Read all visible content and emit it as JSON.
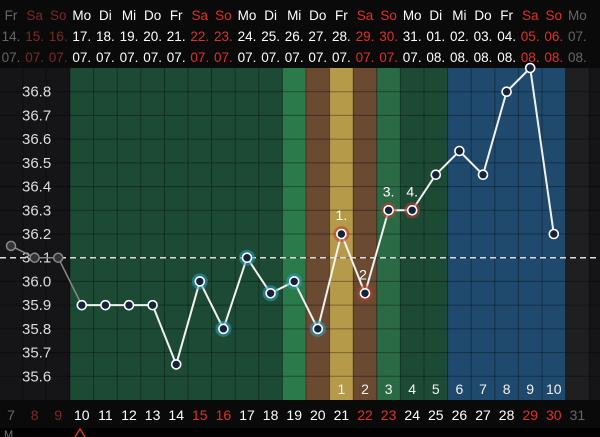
{
  "chart_data": {
    "type": "line",
    "ylim": [
      35.5,
      36.9
    ],
    "y_ticks": [
      "36.8",
      "36.7",
      "36.6",
      "36.5",
      "36.4",
      "36.3",
      "36.2",
      "36.1",
      "36.0",
      "35.9",
      "35.8",
      "35.7",
      "35.6"
    ],
    "coverline": 36.1,
    "grid": true,
    "dates": [
      {
        "dow": "Fr",
        "day": "14.",
        "month": "07.",
        "weekend": false,
        "dim": true
      },
      {
        "dow": "Sa",
        "day": "15.",
        "month": "07.",
        "weekend": true,
        "dim": true
      },
      {
        "dow": "So",
        "day": "16.",
        "month": "07.",
        "weekend": true,
        "dim": true
      },
      {
        "dow": "Mo",
        "day": "17.",
        "month": "07.",
        "weekend": false
      },
      {
        "dow": "Di",
        "day": "18.",
        "month": "07.",
        "weekend": false
      },
      {
        "dow": "Mi",
        "day": "19.",
        "month": "07.",
        "weekend": false
      },
      {
        "dow": "Do",
        "day": "20.",
        "month": "07.",
        "weekend": false
      },
      {
        "dow": "Fr",
        "day": "21.",
        "month": "07.",
        "weekend": false
      },
      {
        "dow": "Sa",
        "day": "22.",
        "month": "07.",
        "weekend": true
      },
      {
        "dow": "So",
        "day": "23.",
        "month": "07.",
        "weekend": true
      },
      {
        "dow": "Mo",
        "day": "24.",
        "month": "07.",
        "weekend": false
      },
      {
        "dow": "Di",
        "day": "25.",
        "month": "07.",
        "weekend": false
      },
      {
        "dow": "Mi",
        "day": "26.",
        "month": "07.",
        "weekend": false
      },
      {
        "dow": "Do",
        "day": "27.",
        "month": "07.",
        "weekend": false
      },
      {
        "dow": "Fr",
        "day": "28.",
        "month": "07.",
        "weekend": false
      },
      {
        "dow": "Sa",
        "day": "29.",
        "month": "07.",
        "weekend": true
      },
      {
        "dow": "So",
        "day": "30.",
        "month": "07.",
        "weekend": true
      },
      {
        "dow": "Mo",
        "day": "31.",
        "month": "07.",
        "weekend": false
      },
      {
        "dow": "Di",
        "day": "01.",
        "month": "08.",
        "weekend": false
      },
      {
        "dow": "Mi",
        "day": "02.",
        "month": "08.",
        "weekend": false
      },
      {
        "dow": "Do",
        "day": "03.",
        "month": "08.",
        "weekend": false
      },
      {
        "dow": "Fr",
        "day": "04.",
        "month": "08.",
        "weekend": false
      },
      {
        "dow": "Sa",
        "day": "05.",
        "month": "08.",
        "weekend": true
      },
      {
        "dow": "So",
        "day": "06.",
        "month": "08.",
        "weekend": true
      },
      {
        "dow": "Mo",
        "day": "07.",
        "month": "08.",
        "weekend": false,
        "dim": true
      }
    ],
    "cycle_days": [
      {
        "label": "7",
        "weekend": false,
        "dim": true
      },
      {
        "label": "8",
        "weekend": true,
        "dim": true
      },
      {
        "label": "9",
        "weekend": true,
        "dim": true
      },
      {
        "label": "10",
        "weekend": false
      },
      {
        "label": "11",
        "weekend": false
      },
      {
        "label": "12",
        "weekend": false
      },
      {
        "label": "13",
        "weekend": false
      },
      {
        "label": "14",
        "weekend": false
      },
      {
        "label": "15",
        "weekend": true
      },
      {
        "label": "16",
        "weekend": true
      },
      {
        "label": "17",
        "weekend": false
      },
      {
        "label": "18",
        "weekend": false
      },
      {
        "label": "19",
        "weekend": false
      },
      {
        "label": "20",
        "weekend": false
      },
      {
        "label": "21",
        "weekend": false
      },
      {
        "label": "22",
        "weekend": true
      },
      {
        "label": "23",
        "weekend": true
      },
      {
        "label": "24",
        "weekend": false
      },
      {
        "label": "25",
        "weekend": false
      },
      {
        "label": "26",
        "weekend": false
      },
      {
        "label": "27",
        "weekend": false
      },
      {
        "label": "28",
        "weekend": false
      },
      {
        "label": "29",
        "weekend": true
      },
      {
        "label": "30",
        "weekend": true
      },
      {
        "label": "31",
        "weekend": false,
        "dim": true
      }
    ],
    "bands": [
      {
        "from": 3,
        "to": 11,
        "color": "#1d4a35"
      },
      {
        "from": 12,
        "to": 12,
        "color": "#2a7a4a"
      },
      {
        "from": 13,
        "to": 13,
        "color": "#6b4a32"
      },
      {
        "from": 14,
        "to": 14,
        "color": "#b59a4a"
      },
      {
        "from": 15,
        "to": 15,
        "color": "#6b4a32"
      },
      {
        "from": 16,
        "to": 16,
        "color": "#2a6a45"
      },
      {
        "from": 17,
        "to": 18,
        "color": "#1d4a35"
      },
      {
        "from": 19,
        "to": 23,
        "color": "#1f4a6e"
      },
      {
        "from": 24,
        "to": 24,
        "color": "#1f1f22"
      }
    ],
    "post_ovulation_labels": [
      {
        "day": 14,
        "label": "1"
      },
      {
        "day": 15,
        "label": "2"
      },
      {
        "day": 16,
        "label": "3"
      },
      {
        "day": 17,
        "label": "4"
      },
      {
        "day": 18,
        "label": "5"
      },
      {
        "day": 19,
        "label": "6"
      },
      {
        "day": 20,
        "label": "7"
      },
      {
        "day": 21,
        "label": "8"
      },
      {
        "day": 22,
        "label": "9"
      },
      {
        "day": 23,
        "label": "10"
      }
    ],
    "series": [
      {
        "prior_points": [
          [
            0,
            36.15
          ],
          [
            1,
            36.1
          ],
          [
            2,
            36.1
          ]
        ],
        "points": [
          {
            "day": 3,
            "value": 35.9,
            "ring": null
          },
          {
            "day": 4,
            "value": 35.9,
            "ring": null
          },
          {
            "day": 5,
            "value": 35.9,
            "ring": null
          },
          {
            "day": 6,
            "value": 35.9,
            "ring": null
          },
          {
            "day": 7,
            "value": 35.65,
            "ring": null
          },
          {
            "day": 8,
            "value": 36.0,
            "ring": "#2aa0c0"
          },
          {
            "day": 9,
            "value": 35.8,
            "ring": "#2aa0c0"
          },
          {
            "day": 10,
            "value": 36.1,
            "ring": "#2aa0c0"
          },
          {
            "day": 11,
            "value": 35.95,
            "ring": "#2aa0c0"
          },
          {
            "day": 12,
            "value": 36.0,
            "ring": "#2aa0c0"
          },
          {
            "day": 13,
            "value": 35.8,
            "ring": "#2aa0c0"
          },
          {
            "day": 14,
            "value": 36.2,
            "ring": "#c0392b",
            "label": "1."
          },
          {
            "day": 15,
            "value": 35.95,
            "ring": "#c0392b",
            "label": "2."
          },
          {
            "day": 16,
            "value": 36.3,
            "ring": "#c0392b",
            "label": "3."
          },
          {
            "day": 17,
            "value": 36.3,
            "ring": "#c0392b",
            "label": "4."
          },
          {
            "day": 18,
            "value": 36.45,
            "ring": null
          },
          {
            "day": 19,
            "value": 36.55,
            "ring": null
          },
          {
            "day": 20,
            "value": 36.45,
            "ring": null
          },
          {
            "day": 21,
            "value": 36.8,
            "ring": null
          },
          {
            "day": 22,
            "value": 36.9,
            "ring": null
          },
          {
            "day": 23,
            "value": 36.2,
            "ring": null
          }
        ]
      }
    ]
  },
  "footer": {
    "left_text": "M",
    "icon": "flag-icon"
  },
  "colors": {
    "weekend": "#e0302a",
    "dim": "#666666",
    "background": "#000000"
  }
}
